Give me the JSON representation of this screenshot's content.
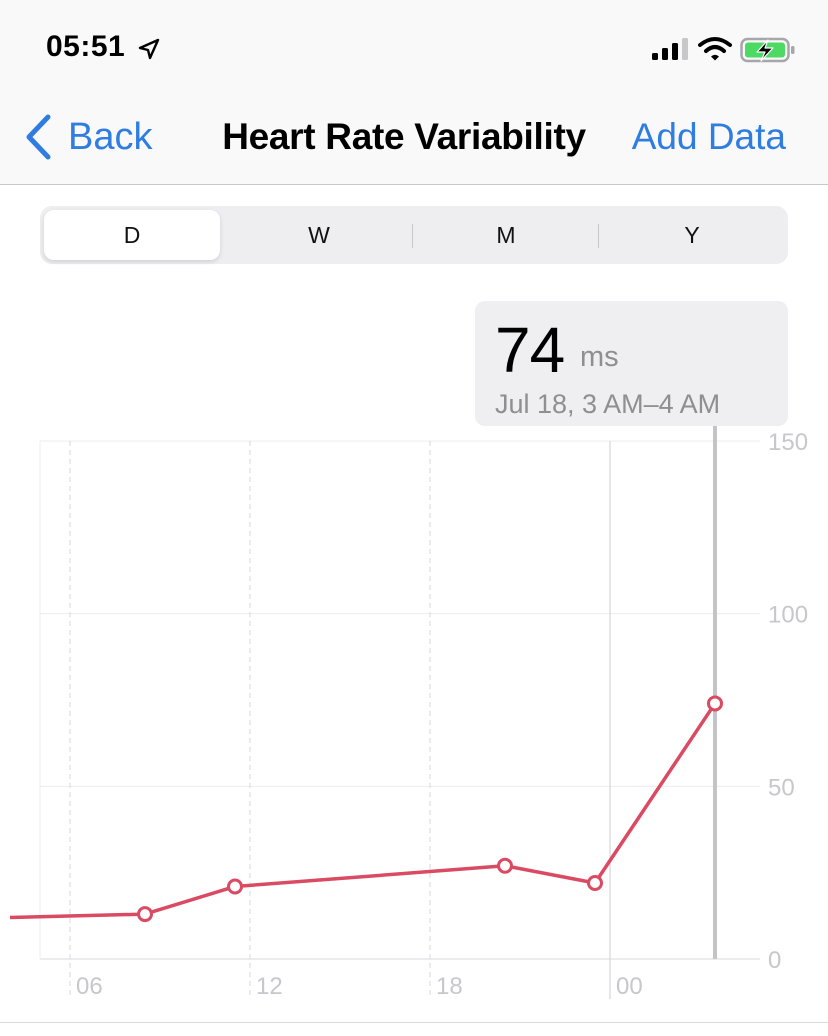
{
  "status_bar": {
    "time": "05:51",
    "icons": [
      "location-arrow-icon",
      "cellular-signal-icon",
      "wifi-icon",
      "battery-charging-icon"
    ]
  },
  "nav": {
    "back_label": "Back",
    "title": "Heart Rate Variability",
    "add_label": "Add Data"
  },
  "segments": {
    "items": [
      "D",
      "W",
      "M",
      "Y"
    ],
    "selected": "D"
  },
  "callout": {
    "value": "74",
    "unit": "ms",
    "date": "Jul 18, 3 AM–4 AM"
  },
  "colors": {
    "accent": "#2f7de1",
    "series": "#da4a63",
    "battery": "#4cd964"
  },
  "chart_data": {
    "type": "line",
    "ylim": [
      0,
      150
    ],
    "y_ticks": [
      0,
      50,
      100,
      150
    ],
    "x_ticks": [
      "06",
      "12",
      "18",
      "00"
    ],
    "grid": true,
    "selected_index": 5,
    "series": [
      {
        "points": [
          {
            "x": "Jul 17, 04:00",
            "y": 12
          },
          {
            "x": "Jul 17, 08:30",
            "y": 13
          },
          {
            "x": "Jul 17, 11:30",
            "y": 21
          },
          {
            "x": "Jul 17, 20:30",
            "y": 27
          },
          {
            "x": "Jul 17, 23:30",
            "y": 22
          },
          {
            "x": "Jul 18, 03:30",
            "y": 74
          }
        ]
      }
    ]
  }
}
